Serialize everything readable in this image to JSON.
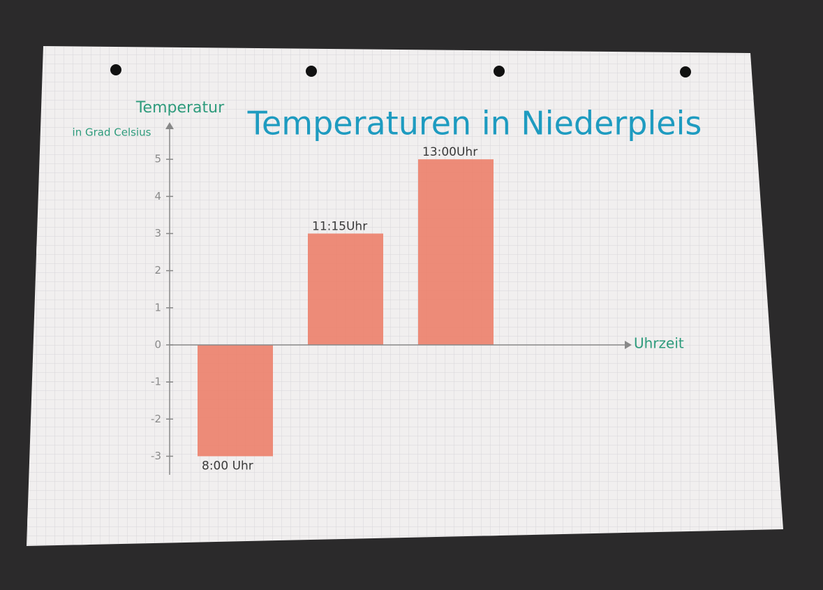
{
  "chart_data": {
    "type": "bar",
    "title": "Temperaturen in Niederpleis",
    "y_label": "Temperatur",
    "y_label_unit": "in Grad Celsius",
    "x_label": "Uhrzeit",
    "categories": [
      "8:00 Uhr",
      "11:15Uhr",
      "13:00Uhr"
    ],
    "values": [
      -3,
      3,
      5
    ],
    "color": "#ec7f6a",
    "ylim": [
      -3.5,
      6
    ],
    "yticks": [
      -3,
      -2,
      -1,
      0,
      1,
      2,
      3,
      4,
      5
    ],
    "grid": false
  }
}
